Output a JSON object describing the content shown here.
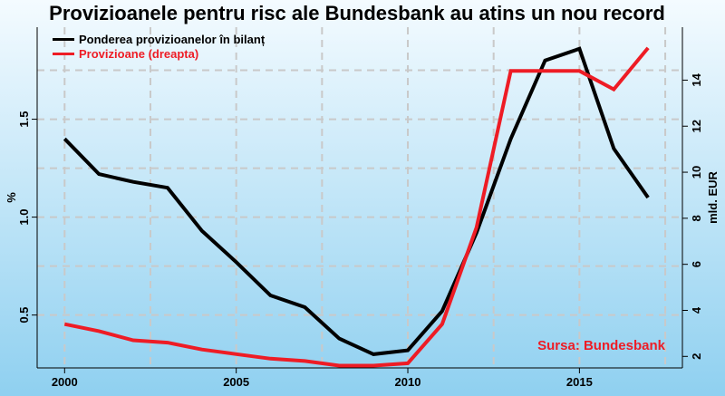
{
  "chart_data": {
    "type": "line",
    "title": "Provizioanele pentru risc ale Bundesbank au atins un nou record",
    "ylabel_left": "%",
    "ylabel_right": "mld. EUR",
    "x": [
      2000,
      2001,
      2002,
      2003,
      2004,
      2005,
      2006,
      2007,
      2008,
      2009,
      2010,
      2011,
      2012,
      2013,
      2014,
      2015,
      2016,
      2017
    ],
    "x_ticks": [
      2000,
      2005,
      2010,
      2015
    ],
    "x_tick_labels": [
      "2000",
      "2005",
      "2010",
      "2015"
    ],
    "xlim": [
      1999.2,
      2018.0
    ],
    "ylim_left": [
      0.23,
      1.97
    ],
    "yticks_left": [
      0.5,
      1.0,
      1.5
    ],
    "ytick_labels_left": [
      "0.5",
      "1.0",
      "1.5"
    ],
    "ylim_right": [
      1.5,
      16.3
    ],
    "yticks_right": [
      2,
      4,
      6,
      8,
      10,
      12,
      14
    ],
    "ytick_labels_right": [
      "2",
      "4",
      "6",
      "8",
      "10",
      "12",
      "14"
    ],
    "grid": true,
    "legend_position": "top-left",
    "series": [
      {
        "name": "Ponderea provizioanelor în bilanț",
        "axis": "left",
        "color": "#000000",
        "values": [
          1.4,
          1.22,
          1.18,
          1.15,
          0.93,
          0.77,
          0.6,
          0.54,
          0.38,
          0.3,
          0.32,
          0.52,
          0.92,
          1.4,
          1.8,
          1.86,
          1.35,
          1.1
        ]
      },
      {
        "name": "Provizioane (dreapta)",
        "axis": "right",
        "color": "#ee1c25",
        "values": [
          3.4,
          3.1,
          2.7,
          2.6,
          2.3,
          2.1,
          1.9,
          1.8,
          1.6,
          1.6,
          1.7,
          3.4,
          7.6,
          14.4,
          14.4,
          14.4,
          13.6,
          15.4
        ]
      }
    ],
    "source": "Sursa: Bundesbank",
    "colors": {
      "background_top": "#f4fbff",
      "background_bottom": "#8fd0f0",
      "grid": "#c9c9c9",
      "source_text": "#ee1c25"
    }
  }
}
